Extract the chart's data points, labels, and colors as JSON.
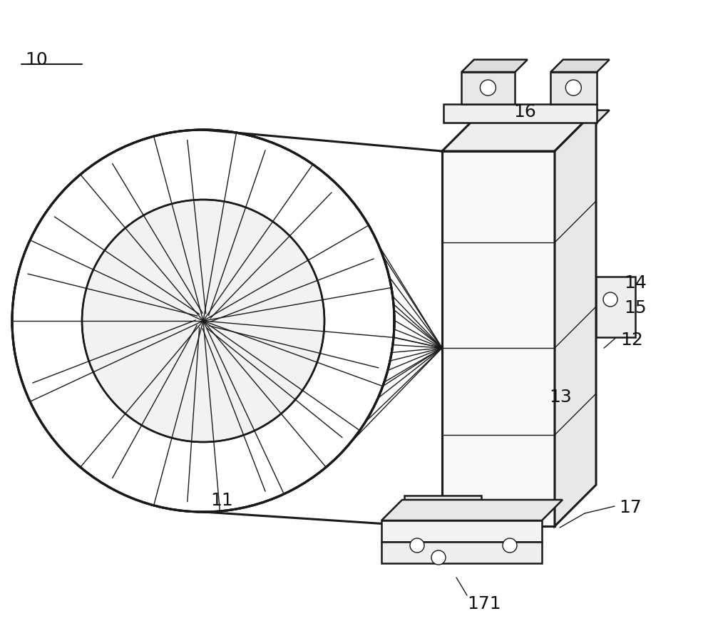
{
  "bg_color": "#ffffff",
  "line_color": "#1a1a1a",
  "lw_main": 1.8,
  "lw_thin": 1.0,
  "lw_thick": 2.2,
  "figsize": [
    10.0,
    8.71
  ],
  "label_fontsize": 18
}
